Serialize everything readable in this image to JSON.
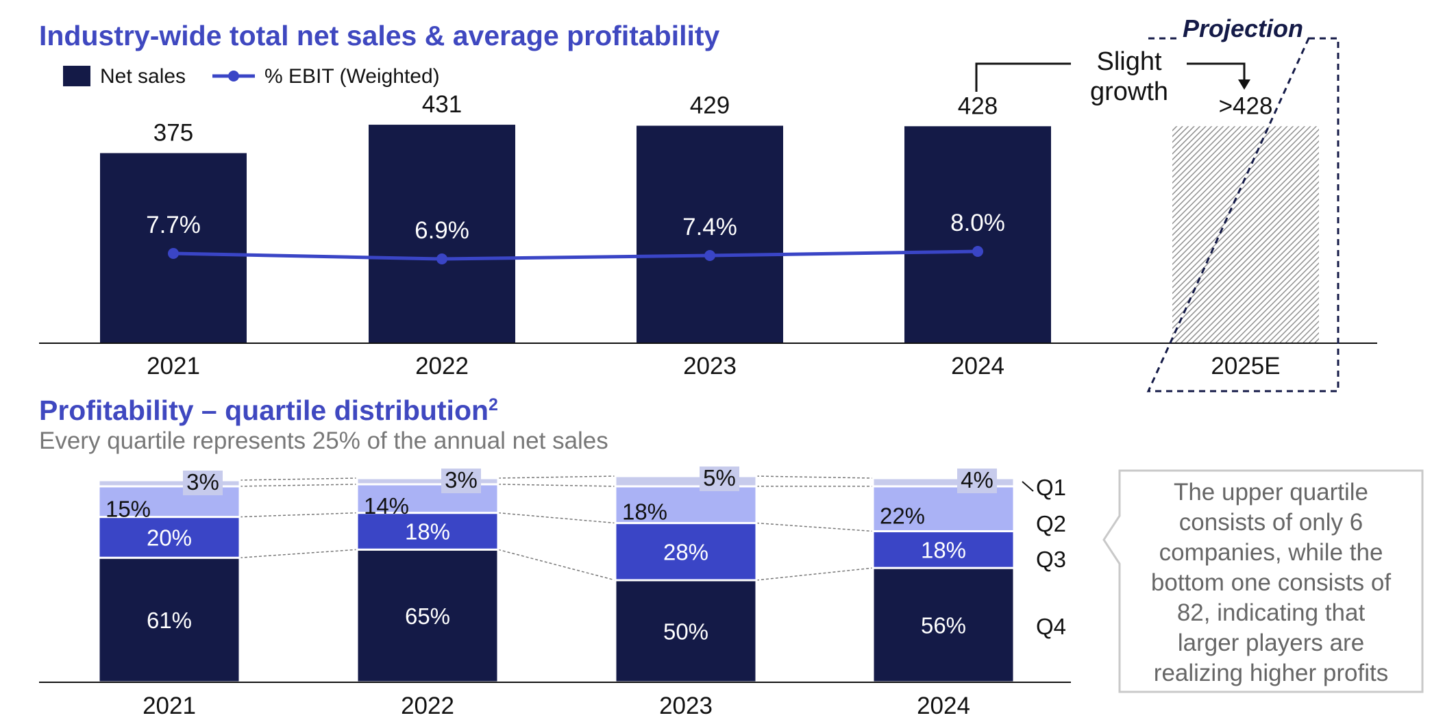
{
  "colors": {
    "title": "#3f48c0",
    "navy": "#141a47",
    "line": "#3a45c6",
    "q1": "#c7cbec",
    "q2": "#aab2f5",
    "q3": "#3a45c6",
    "q4": "#141a47",
    "hatch": "#9a9a9a",
    "subtitle": "#777777",
    "note_border": "#cccccc",
    "note_text": "#666666"
  },
  "chart_data": [
    {
      "type": "bar",
      "title": "Industry-wide total net sales & average profitability",
      "legend": {
        "placement": "top-left"
      },
      "categories": [
        "2021",
        "2022",
        "2023",
        "2024",
        "2025E"
      ],
      "series": [
        {
          "name": "Net sales",
          "type": "bar",
          "values": [
            375,
            431,
            429,
            428,
            428
          ]
        },
        {
          "name": "% EBIT (Weighted)",
          "type": "line",
          "values": [
            7.7,
            6.9,
            7.4,
            8.0,
            null
          ]
        }
      ],
      "value_labels": [
        "375",
        "431",
        "429",
        "428",
        ">428"
      ],
      "ebit_labels": [
        "7.7%",
        "6.9%",
        "7.4%",
        "8.0%"
      ],
      "projection": {
        "label": "Projection",
        "category": "2025E"
      },
      "annotation": {
        "lines": [
          "Slight",
          "growth"
        ]
      },
      "ylim": [
        0,
        480
      ]
    },
    {
      "type": "bar",
      "stacked": true,
      "title": "Profitability – quartile distribution",
      "title_superscript": "2",
      "subtitle": "Every quartile represents 25% of the annual net sales",
      "categories": [
        "2021",
        "2022",
        "2023",
        "2024"
      ],
      "series": [
        {
          "name": "Q1",
          "values": [
            3,
            3,
            5,
            4
          ]
        },
        {
          "name": "Q2",
          "values": [
            15,
            14,
            18,
            22
          ]
        },
        {
          "name": "Q3",
          "values": [
            20,
            18,
            28,
            18
          ]
        },
        {
          "name": "Q4",
          "values": [
            61,
            65,
            50,
            56
          ]
        }
      ],
      "labels": {
        "Q1": [
          "3%",
          "3%",
          "5%",
          "4%"
        ],
        "Q2": [
          "15%",
          "14%",
          "18%",
          "22%"
        ],
        "Q3": [
          "20%",
          "18%",
          "28%",
          "18%"
        ],
        "Q4": [
          "61%",
          "65%",
          "50%",
          "56%"
        ]
      },
      "ylim": [
        0,
        100
      ]
    }
  ],
  "note": {
    "lines": [
      "The upper quartile",
      "consists of only 6",
      "companies, while the",
      "bottom one consists of",
      "82, indicating that",
      "larger players are",
      "realizing higher profits"
    ]
  }
}
